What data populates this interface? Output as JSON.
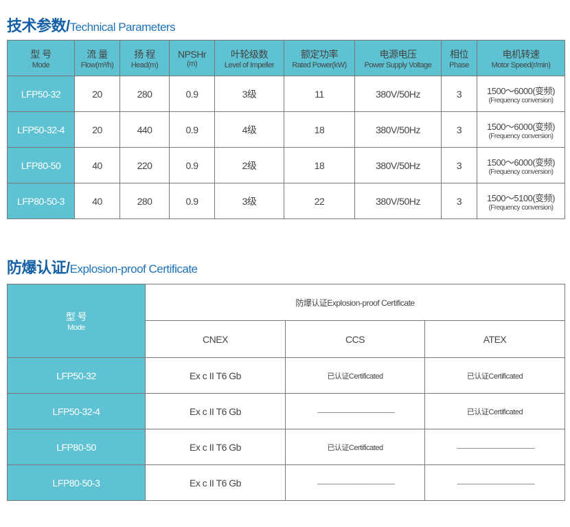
{
  "tech": {
    "title_cn": "技术参数/",
    "title_en": "Technical Parameters",
    "headers": [
      {
        "cn": "型 号",
        "en": "Mode"
      },
      {
        "cn": "流 量",
        "en": "Flow(m³/h)"
      },
      {
        "cn": "扬 程",
        "en": "Head(m)"
      },
      {
        "cn": "NPSHr",
        "en": "(m)"
      },
      {
        "cn": "叶轮级数",
        "en": "Level of Impeller"
      },
      {
        "cn": "额定功率",
        "en": "Rated Power(kW)"
      },
      {
        "cn": "电源电压",
        "en": "Power Supply Voltage"
      },
      {
        "cn": "相位",
        "en": "Phase"
      },
      {
        "cn": "电机转速",
        "en": "Motor Speed(r/min)"
      }
    ],
    "rows": [
      [
        "LFP50-32",
        "20",
        "280",
        "0.9",
        "3级",
        "11",
        "380V/50Hz",
        "3",
        "1500～6000(变频)",
        "(Frequency conversion)"
      ],
      [
        "LFP50-32-4",
        "20",
        "440",
        "0.9",
        "4级",
        "18",
        "380V/50Hz",
        "3",
        "1500～6000(变频)",
        "(Frequency conversion)"
      ],
      [
        "LFP80-50",
        "40",
        "220",
        "0.9",
        "2级",
        "18",
        "380V/50Hz",
        "3",
        "1500～6000(变频)",
        "(Frequency conversion)"
      ],
      [
        "LFP80-50-3",
        "40",
        "280",
        "0.9",
        "3级",
        "22",
        "380V/50Hz",
        "3",
        "1500～5100(变频)",
        "(Frequency conversion)"
      ]
    ]
  },
  "cert": {
    "title_cn": "防爆认证/",
    "title_en": "Explosion-proof Certificate",
    "model_cn": "型 号",
    "model_en": "Mode",
    "group": "防爆认证Explosion-proof Certificate",
    "cols": [
      "CNEX",
      "CCS",
      "ATEX"
    ],
    "rows": [
      [
        "LFP50-32",
        "Ex c II T6 Gb",
        "已认证Certificated",
        "已认证Certificated"
      ],
      [
        "LFP50-32-4",
        "Ex c II T6 Gb",
        "——————————",
        "已认证Certificated"
      ],
      [
        "LFP80-50",
        "Ex c II T6 Gb",
        "已认证Certificated",
        "——————————"
      ],
      [
        "LFP80-50-3",
        "Ex c II T6 Gb",
        "——————————",
        "——————————"
      ]
    ]
  },
  "colors": {
    "header": "#5ec2d2",
    "title": "#1560a5"
  }
}
